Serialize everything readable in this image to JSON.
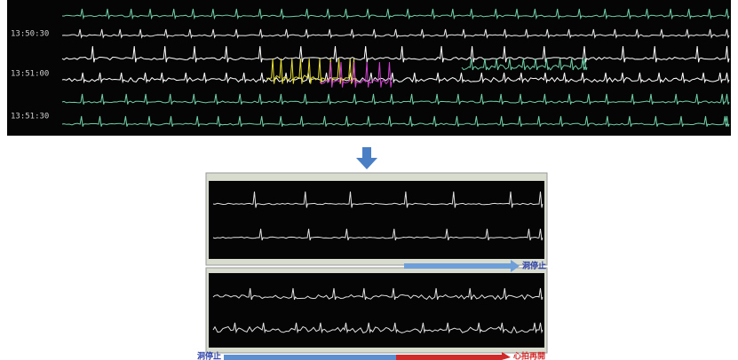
{
  "monitor": {
    "timestamps": [
      "13:50:30",
      "13:51:00",
      "13:51:30"
    ]
  },
  "annotations": {
    "sinus_arrest_top": "洞停止",
    "sinus_arrest_bottom": "洞停止",
    "heart_resumed": "心拍再開"
  }
}
